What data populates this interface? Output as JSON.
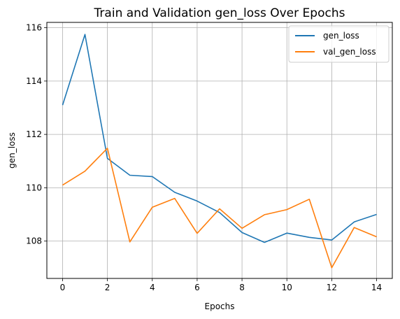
{
  "chart_data": {
    "type": "line",
    "title": "Train and Validation gen_loss Over Epochs",
    "xlabel": "Epochs",
    "ylabel": "gen_loss",
    "x": [
      0,
      1,
      2,
      3,
      4,
      5,
      6,
      7,
      8,
      9,
      10,
      11,
      12,
      13,
      14
    ],
    "xlim": [
      -0.7,
      14.7
    ],
    "ylim": [
      106.6,
      116.2
    ],
    "xticks": [
      0,
      2,
      4,
      6,
      8,
      10,
      12,
      14
    ],
    "yticks": [
      108,
      110,
      112,
      114,
      116
    ],
    "grid": true,
    "legend_position": "top-right",
    "series": [
      {
        "name": "gen_loss",
        "color": "#1f77b4",
        "values": [
          113.1,
          115.75,
          111.1,
          110.47,
          110.42,
          109.83,
          109.5,
          109.07,
          108.32,
          107.95,
          108.3,
          108.14,
          108.04,
          108.72,
          109.0
        ]
      },
      {
        "name": "val_gen_loss",
        "color": "#ff7f0e",
        "values": [
          110.1,
          110.62,
          111.48,
          107.97,
          109.27,
          109.6,
          108.29,
          109.21,
          108.48,
          108.99,
          109.18,
          109.57,
          107.0,
          108.51,
          108.16
        ]
      }
    ]
  }
}
